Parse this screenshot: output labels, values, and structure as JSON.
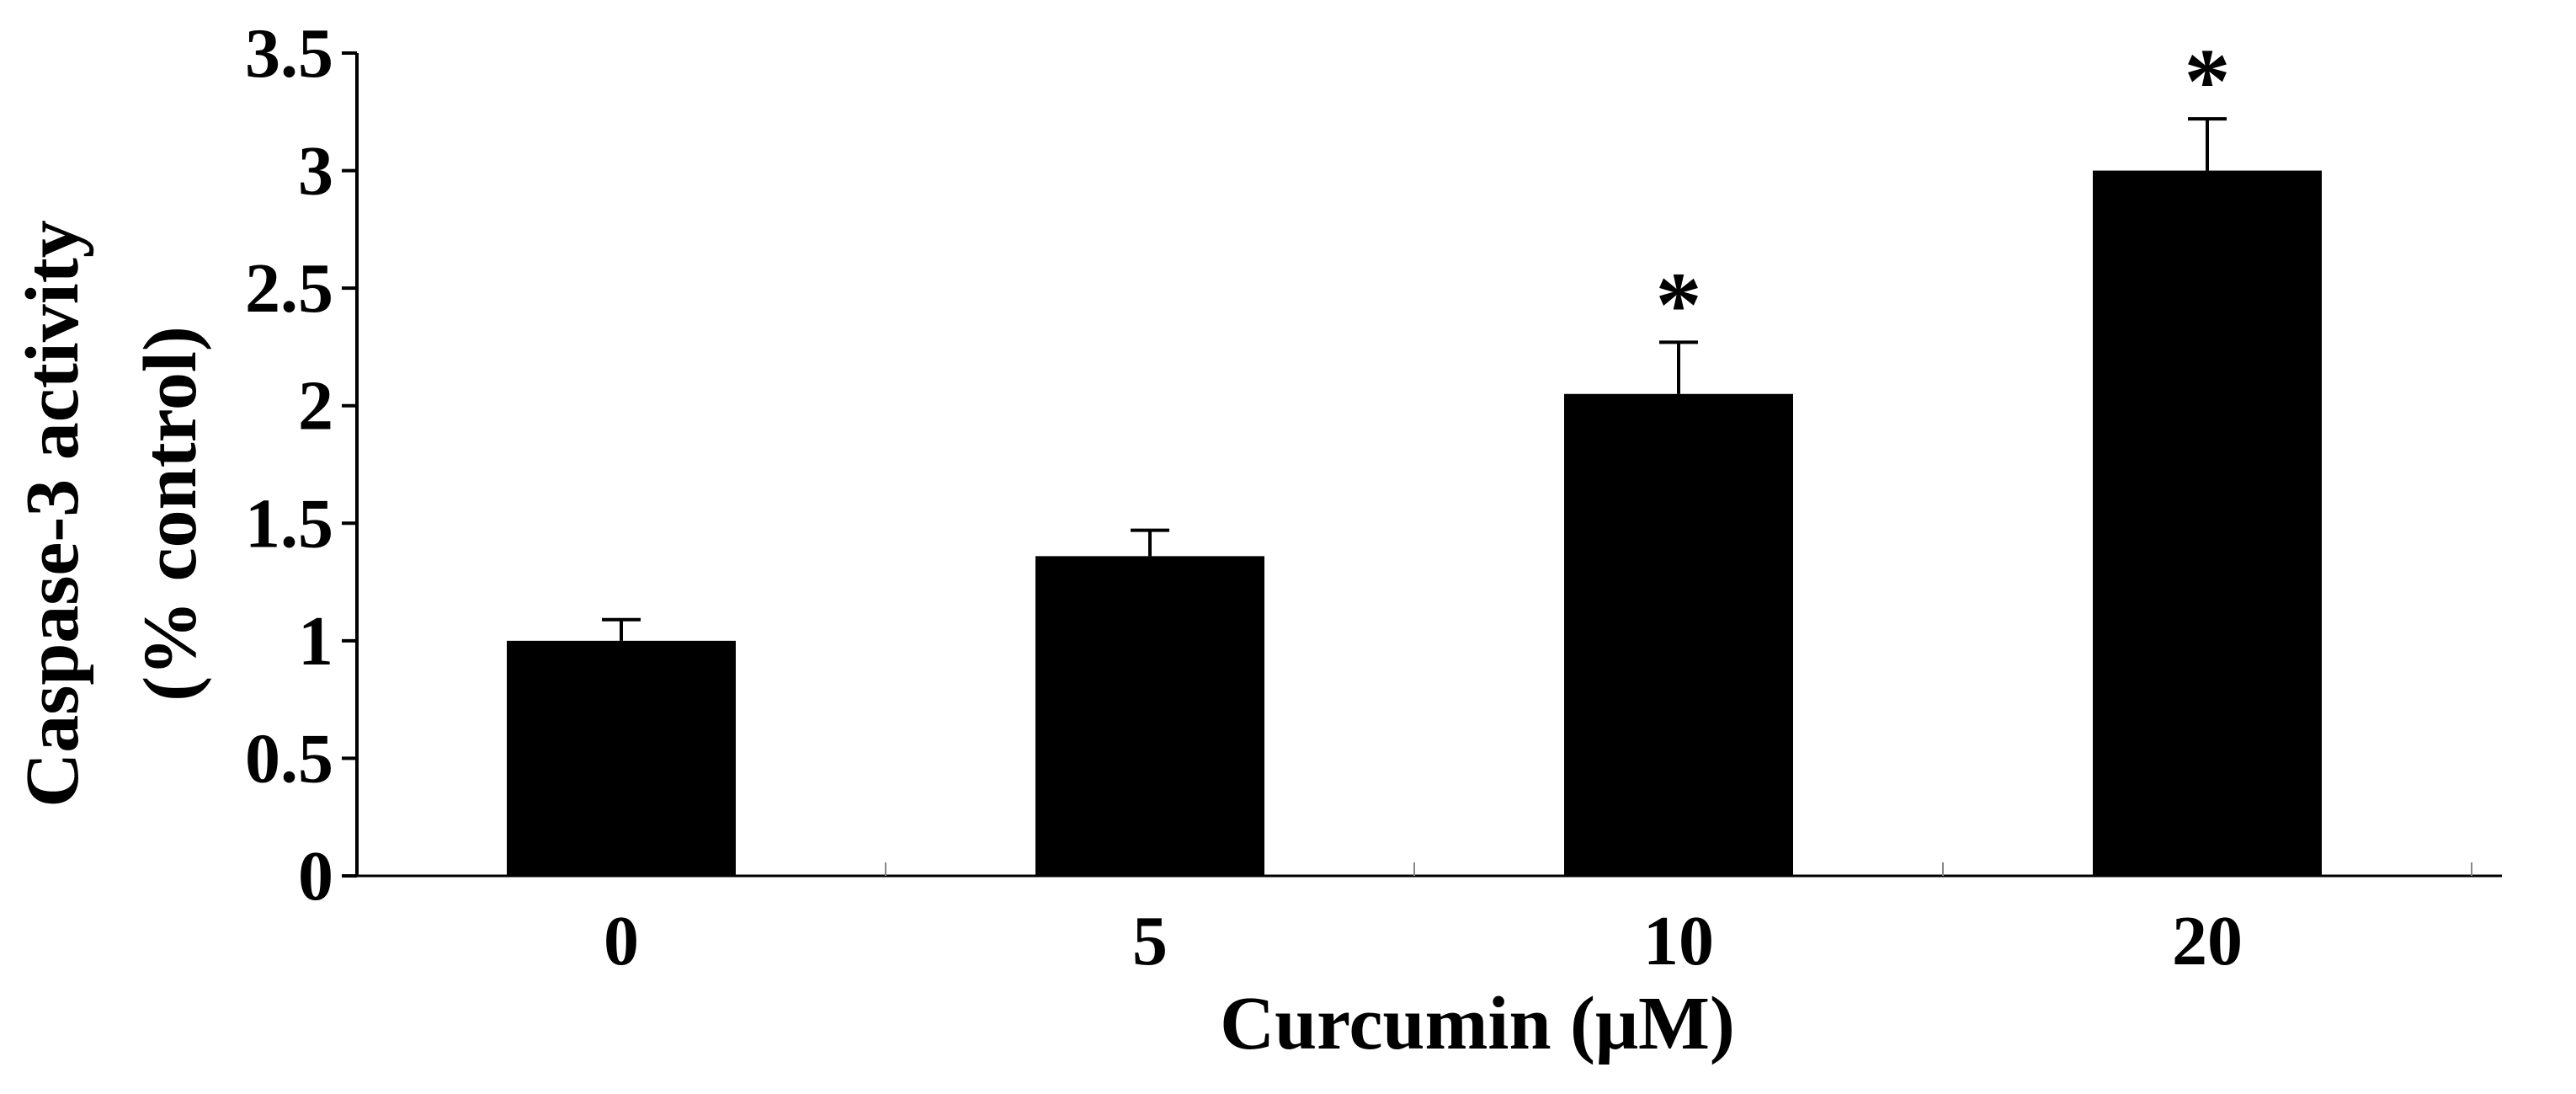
{
  "chart_data": {
    "type": "bar",
    "categories": [
      "0",
      "5",
      "10",
      "20"
    ],
    "values": [
      1.0,
      1.36,
      2.05,
      3.0
    ],
    "error_upper": [
      0.09,
      0.11,
      0.22,
      0.22
    ],
    "significance": [
      "",
      "",
      "*",
      "*"
    ],
    "title": "",
    "xlabel": "Curcumin (μM)",
    "ylabel_lines": [
      "Caspase-3 activity",
      "(% control)"
    ],
    "ylim": [
      0,
      3.5
    ],
    "yticks": [
      0,
      0.5,
      1,
      1.5,
      2,
      2.5,
      3,
      3.5
    ],
    "ytick_labels": [
      "0",
      "0.5",
      "1",
      "1.5",
      "2",
      "2.5",
      "3",
      "3.5"
    ],
    "bar_color": "#000000",
    "grid": false,
    "legend": "none"
  }
}
